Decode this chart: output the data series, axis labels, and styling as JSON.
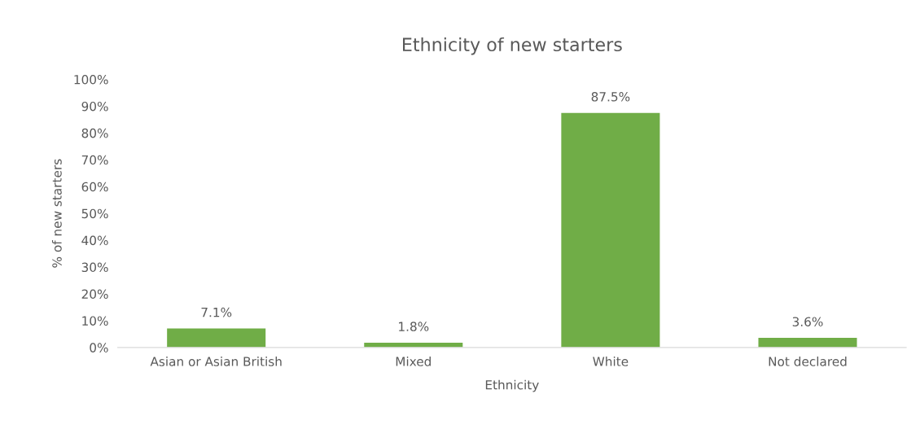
{
  "chart_data": {
    "type": "bar",
    "title": "Ethnicity of new starters",
    "xlabel": "Ethnicity",
    "ylabel": "% of new starters",
    "categories": [
      "Asian or Asian British",
      "Mixed",
      "White",
      "Not declared"
    ],
    "values": [
      7.1,
      1.8,
      87.5,
      3.6
    ],
    "value_labels": [
      "7.1%",
      "1.8%",
      "87.5%",
      "3.6%"
    ],
    "color": "#70ad47",
    "ylim": [
      0,
      100
    ],
    "yticks": [
      {
        "value": 0,
        "label": "0%"
      },
      {
        "value": 10,
        "label": "10%"
      },
      {
        "value": 20,
        "label": "20%"
      },
      {
        "value": 30,
        "label": "30%"
      },
      {
        "value": 40,
        "label": "40%"
      },
      {
        "value": 50,
        "label": "50%"
      },
      {
        "value": 60,
        "label": "60%"
      },
      {
        "value": 70,
        "label": "70%"
      },
      {
        "value": 80,
        "label": "80%"
      },
      {
        "value": 90,
        "label": "90%"
      },
      {
        "value": 100,
        "label": "100%"
      }
    ],
    "grid": false
  }
}
